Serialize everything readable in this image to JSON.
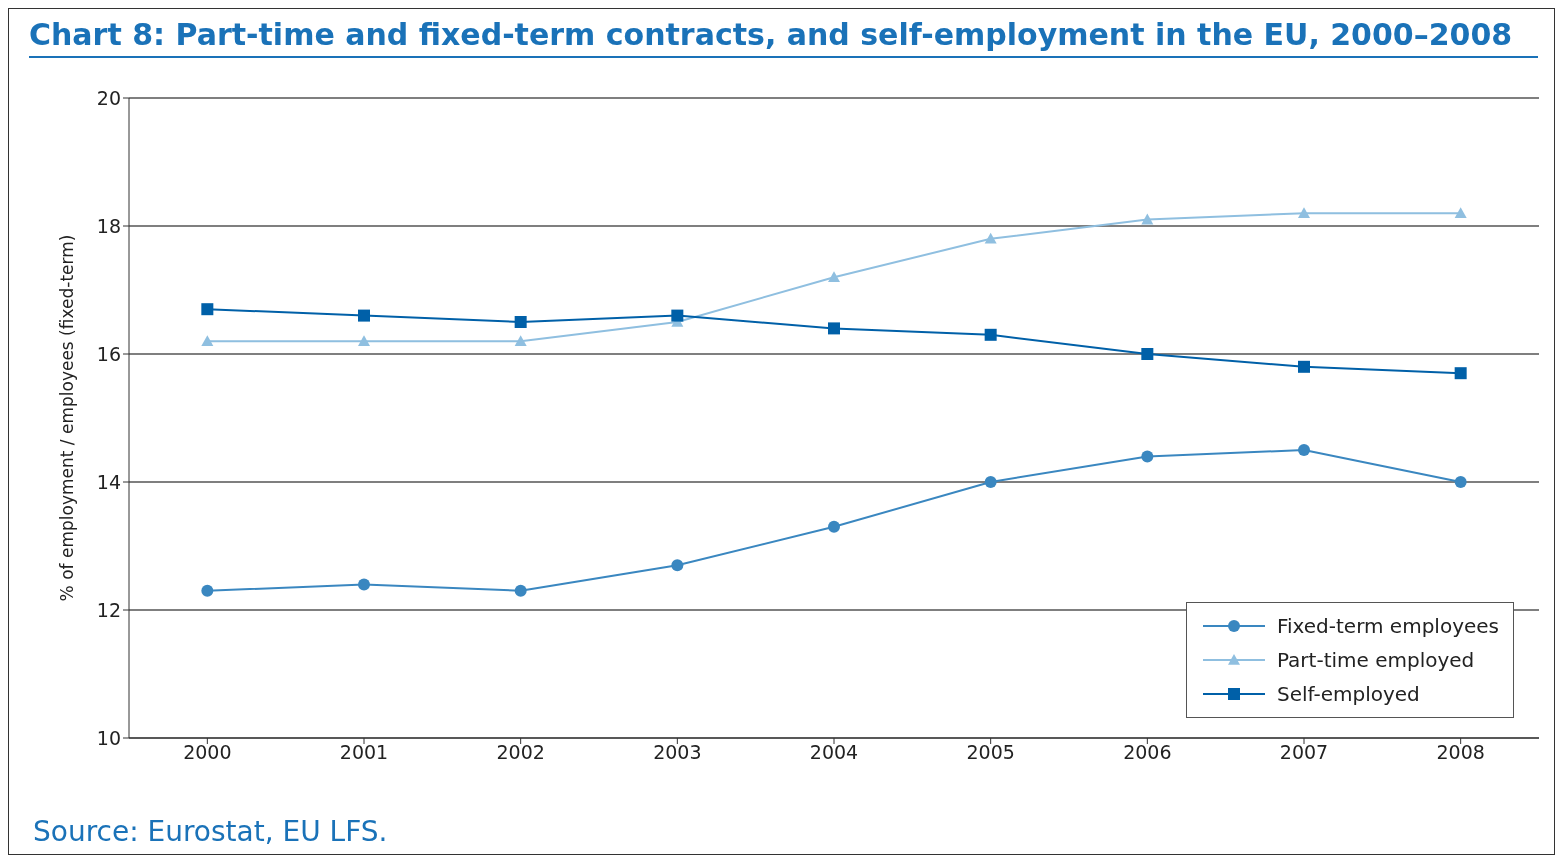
{
  "chart_data": {
    "type": "line",
    "title": "Chart 8: Part-time and fixed-term contracts, and self-employment in the EU, 2000–2008",
    "ylabel": "% of employment / employees (fixed-term)",
    "categories": [
      "2000",
      "2001",
      "2002",
      "2003",
      "2004",
      "2005",
      "2006",
      "2007",
      "2008"
    ],
    "series": [
      {
        "name": "Fixed-term employees",
        "color": "#3a87c0",
        "marker": "circle",
        "values": [
          12.3,
          12.4,
          12.3,
          12.7,
          13.3,
          14.0,
          14.4,
          14.5,
          14.0
        ]
      },
      {
        "name": "Part-time employed",
        "color": "#8fbfe0",
        "marker": "triangle",
        "values": [
          16.2,
          16.2,
          16.2,
          16.5,
          17.2,
          17.8,
          18.1,
          18.2,
          18.2
        ]
      },
      {
        "name": "Self-employed",
        "color": "#0060a8",
        "marker": "square",
        "values": [
          16.7,
          16.6,
          16.5,
          16.6,
          16.4,
          16.3,
          16.0,
          15.8,
          15.7
        ]
      }
    ],
    "ylim": [
      10,
      20
    ],
    "yticks": [
      10,
      12,
      14,
      16,
      18,
      20
    ],
    "grid": "y",
    "legend": "bottom right",
    "annotations": [
      "Source: Eurostat, EU LFS."
    ]
  }
}
